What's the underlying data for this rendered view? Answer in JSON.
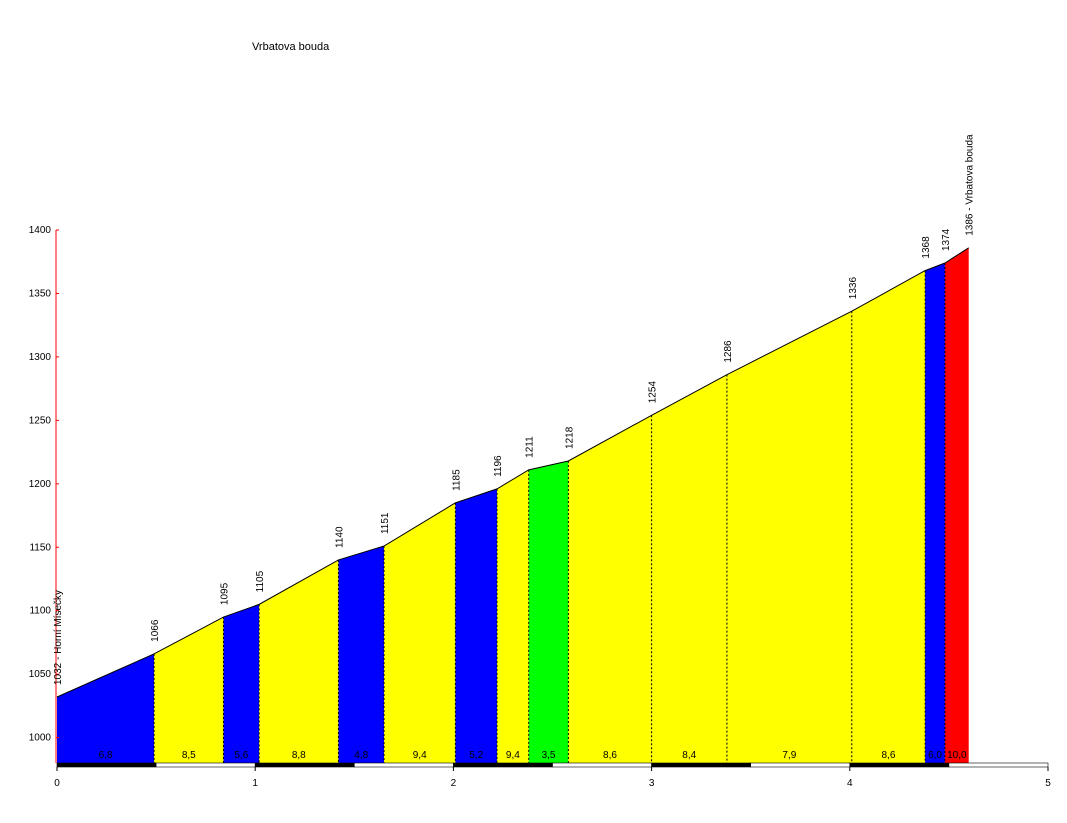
{
  "chart_data": {
    "type": "area",
    "title": "Vrbatova bouda",
    "xlabel": "",
    "ylabel": "",
    "xlim": [
      0,
      5
    ],
    "ylim": [
      980,
      1400
    ],
    "x_ticks": [
      "0",
      "1",
      "2",
      "3",
      "4",
      "5"
    ],
    "y_ticks": [
      "1000",
      "1050",
      "1100",
      "1150",
      "1200",
      "1250",
      "1300",
      "1350",
      "1400"
    ],
    "points": [
      {
        "x": 0.0,
        "y": 1032,
        "label": "1032 - Horní Mísečky"
      },
      {
        "x": 0.49,
        "y": 1066,
        "label": "1066"
      },
      {
        "x": 0.84,
        "y": 1095,
        "label": "1095"
      },
      {
        "x": 1.02,
        "y": 1105,
        "label": "1105"
      },
      {
        "x": 1.42,
        "y": 1140,
        "label": "1140"
      },
      {
        "x": 1.65,
        "y": 1151,
        "label": "1151"
      },
      {
        "x": 2.01,
        "y": 1185,
        "label": "1185"
      },
      {
        "x": 2.22,
        "y": 1196,
        "label": "1196"
      },
      {
        "x": 2.38,
        "y": 1211,
        "label": "1211"
      },
      {
        "x": 2.58,
        "y": 1218,
        "label": "1218"
      },
      {
        "x": 3.0,
        "y": 1254,
        "label": "1254"
      },
      {
        "x": 3.38,
        "y": 1286,
        "label": "1286"
      },
      {
        "x": 4.01,
        "y": 1336,
        "label": "1336"
      },
      {
        "x": 4.38,
        "y": 1368,
        "label": "1368"
      },
      {
        "x": 4.48,
        "y": 1374,
        "label": "1374"
      },
      {
        "x": 4.6,
        "y": 1386,
        "label": "1386 - Vrbatova bouda"
      }
    ],
    "segments": [
      {
        "gradient": "6,8",
        "color": "#0000ff"
      },
      {
        "gradient": "8,5",
        "color": "#ffff00"
      },
      {
        "gradient": "5,6",
        "color": "#0000ff"
      },
      {
        "gradient": "8,8",
        "color": "#ffff00"
      },
      {
        "gradient": "4,8",
        "color": "#0000ff"
      },
      {
        "gradient": "9,4",
        "color": "#ffff00"
      },
      {
        "gradient": "5,2",
        "color": "#0000ff"
      },
      {
        "gradient": "9,4",
        "color": "#ffff00"
      },
      {
        "gradient": "3,5",
        "color": "#00ff00"
      },
      {
        "gradient": "8,6",
        "color": "#ffff00"
      },
      {
        "gradient": "8,4",
        "color": "#ffff00"
      },
      {
        "gradient": "7,9",
        "color": "#ffff00"
      },
      {
        "gradient": "8,6",
        "color": "#ffff00"
      },
      {
        "gradient": "6,0",
        "color": "#0000ff"
      },
      {
        "gradient": "10,0",
        "color": "#ff0000"
      }
    ]
  }
}
